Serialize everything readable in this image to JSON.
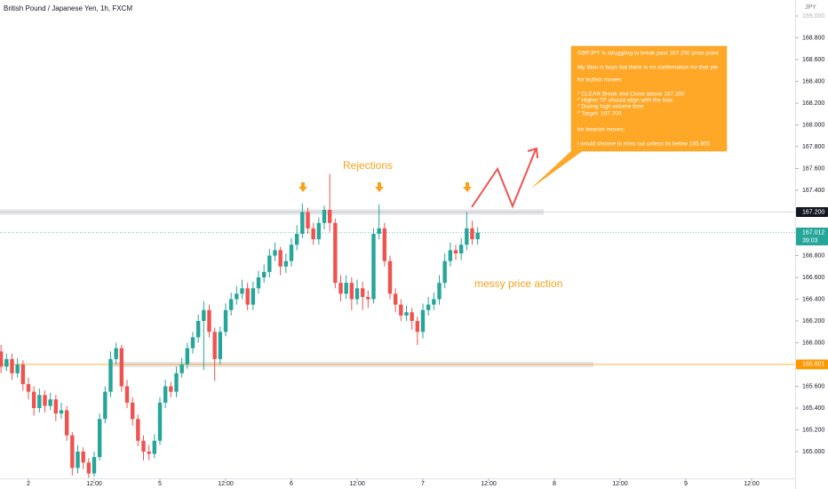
{
  "chart_data": {
    "type": "candlestick",
    "title": "British Pound / Japanese Yen, 1h, FXCM",
    "y_unit": "JPY",
    "up_color": "#26a69a",
    "down_color": "#ef5350",
    "grid": false,
    "xlim": [
      -0.19,
      144.95
    ],
    "ylim": [
      164.755,
      169.147
    ],
    "xticks": [
      {
        "value": 5,
        "label": "2"
      },
      {
        "value": 17,
        "label": "12:00"
      },
      {
        "value": 29,
        "label": "5"
      },
      {
        "value": 41,
        "label": "12:00"
      },
      {
        "value": 53,
        "label": "6"
      },
      {
        "value": 65,
        "label": "12:00"
      },
      {
        "value": 77,
        "label": "7"
      },
      {
        "value": 89,
        "label": "12:00"
      },
      {
        "value": 101,
        "label": "8"
      },
      {
        "value": 113,
        "label": "12:00"
      },
      {
        "value": 125,
        "label": "9"
      },
      {
        "value": 137,
        "label": "12:00"
      }
    ],
    "yticks": [
      {
        "value": 165.0,
        "label": "165.000"
      },
      {
        "value": 165.2,
        "label": "165.200"
      },
      {
        "value": 165.4,
        "label": "165.400"
      },
      {
        "value": 165.6,
        "label": "165.600"
      },
      {
        "value": 166.0,
        "label": "166.000"
      },
      {
        "value": 166.2,
        "label": "166.200"
      },
      {
        "value": 166.4,
        "label": "166.400"
      },
      {
        "value": 166.6,
        "label": "166.600"
      },
      {
        "value": 166.8,
        "label": "166.800"
      },
      {
        "value": 167.4,
        "label": "167.400"
      },
      {
        "value": 167.6,
        "label": "167.600"
      },
      {
        "value": 167.8,
        "label": "167.800"
      },
      {
        "value": 168.0,
        "label": "168.000"
      },
      {
        "value": 168.2,
        "label": "168.200"
      },
      {
        "value": 168.4,
        "label": "168.400"
      },
      {
        "value": 168.6,
        "label": "168.600"
      },
      {
        "value": 168.8,
        "label": "168.800"
      },
      {
        "value": 169.0,
        "label": "169.000"
      }
    ],
    "x": [
      0,
      1,
      2,
      3,
      4,
      5,
      6,
      7,
      8,
      9,
      10,
      11,
      12,
      13,
      14,
      15,
      16,
      17,
      18,
      19,
      20,
      21,
      22,
      23,
      24,
      25,
      26,
      27,
      28,
      29,
      30,
      31,
      32,
      33,
      34,
      35,
      36,
      37,
      38,
      39,
      40,
      41,
      42,
      43,
      44,
      45,
      46,
      47,
      48,
      49,
      50,
      51,
      52,
      53,
      54,
      55,
      56,
      57,
      58,
      59,
      60,
      61,
      62,
      63,
      64,
      65,
      66,
      67,
      68,
      69,
      70,
      71,
      72,
      73,
      74,
      75,
      76,
      77,
      78,
      79,
      80,
      81,
      82,
      83,
      84,
      85,
      86,
      87
    ],
    "open": [
      165.92,
      165.78,
      165.85,
      165.72,
      165.8,
      165.62,
      165.55,
      165.4,
      165.52,
      165.42,
      165.48,
      165.35,
      165.38,
      165.15,
      164.85,
      165.0,
      164.9,
      164.8,
      164.95,
      165.3,
      165.55,
      165.85,
      165.95,
      165.6,
      165.45,
      165.3,
      165.1,
      165.0,
      164.98,
      165.1,
      165.45,
      165.6,
      165.55,
      165.72,
      165.8,
      165.95,
      166.05,
      166.2,
      166.3,
      166.1,
      165.85,
      166.1,
      166.3,
      166.4,
      166.45,
      166.5,
      166.35,
      166.5,
      166.6,
      166.65,
      166.8,
      166.85,
      166.7,
      166.75,
      166.9,
      167.0,
      167.2,
      167.05,
      166.95,
      167.1,
      167.22,
      167.1,
      166.55,
      166.45,
      166.55,
      166.4,
      166.5,
      166.42,
      166.4,
      167.0,
      167.05,
      166.75,
      166.45,
      166.35,
      166.25,
      166.28,
      166.2,
      166.1,
      166.3,
      166.35,
      166.4,
      166.55,
      166.75,
      166.85,
      166.82,
      166.9,
      167.05,
      166.95
    ],
    "high": [
      165.98,
      165.9,
      165.9,
      165.86,
      165.84,
      165.68,
      165.6,
      165.58,
      165.56,
      165.54,
      165.52,
      165.45,
      165.42,
      165.18,
      165.06,
      165.04,
      164.94,
      165.0,
      165.35,
      165.6,
      165.92,
      166.0,
      165.98,
      165.66,
      165.5,
      165.34,
      165.15,
      165.06,
      165.16,
      165.5,
      165.66,
      165.64,
      165.78,
      165.86,
      166.0,
      166.1,
      166.26,
      166.38,
      166.35,
      166.14,
      166.15,
      166.36,
      166.46,
      166.52,
      166.58,
      166.55,
      166.56,
      166.66,
      166.72,
      166.86,
      166.92,
      166.88,
      166.82,
      166.96,
      167.08,
      167.28,
      167.24,
      167.1,
      167.15,
      167.26,
      167.55,
      167.14,
      166.62,
      166.62,
      166.6,
      166.58,
      166.56,
      166.48,
      167.05,
      167.27,
      167.1,
      166.8,
      166.5,
      166.4,
      166.34,
      166.32,
      166.24,
      166.36,
      166.42,
      166.46,
      166.62,
      166.82,
      166.92,
      166.9,
      166.96,
      167.2,
      167.12,
      167.06
    ],
    "low": [
      165.72,
      165.74,
      165.66,
      165.68,
      165.56,
      165.48,
      165.33,
      165.36,
      165.36,
      165.38,
      165.28,
      165.3,
      165.1,
      164.78,
      164.8,
      164.84,
      164.76,
      164.77,
      164.92,
      165.26,
      165.5,
      165.8,
      165.55,
      165.4,
      165.24,
      165.05,
      164.92,
      164.92,
      164.94,
      165.06,
      165.4,
      165.5,
      165.5,
      165.68,
      165.76,
      165.9,
      166.0,
      165.75,
      166.05,
      165.65,
      165.8,
      166.06,
      166.25,
      166.35,
      166.4,
      166.3,
      166.3,
      166.45,
      166.55,
      166.6,
      166.75,
      166.62,
      166.64,
      166.7,
      166.85,
      166.96,
      167.0,
      166.9,
      166.9,
      167.04,
      167.02,
      166.5,
      166.38,
      166.4,
      166.3,
      166.35,
      166.3,
      166.32,
      166.36,
      166.95,
      166.7,
      166.4,
      166.28,
      166.2,
      166.2,
      166.12,
      165.98,
      166.04,
      166.25,
      166.3,
      166.35,
      166.5,
      166.7,
      166.76,
      166.76,
      166.85,
      166.9,
      166.9
    ],
    "close": [
      165.78,
      165.85,
      165.72,
      165.8,
      165.62,
      165.55,
      165.4,
      165.52,
      165.42,
      165.48,
      165.35,
      165.38,
      165.15,
      164.85,
      165.0,
      164.9,
      164.8,
      164.95,
      165.3,
      165.55,
      165.85,
      165.95,
      165.6,
      165.45,
      165.3,
      165.1,
      165.0,
      164.98,
      165.1,
      165.45,
      165.6,
      165.55,
      165.72,
      165.8,
      165.95,
      166.05,
      166.2,
      166.3,
      166.1,
      165.85,
      166.1,
      166.3,
      166.4,
      166.45,
      166.5,
      166.35,
      166.5,
      166.6,
      166.65,
      166.8,
      166.85,
      166.7,
      166.75,
      166.9,
      167.0,
      167.2,
      167.05,
      166.95,
      167.1,
      167.22,
      167.1,
      166.55,
      166.45,
      166.55,
      166.4,
      166.5,
      166.42,
      166.4,
      167.0,
      167.05,
      166.75,
      166.45,
      166.35,
      166.25,
      166.28,
      166.2,
      166.1,
      166.3,
      166.35,
      166.4,
      166.55,
      166.75,
      166.85,
      166.82,
      166.9,
      167.05,
      166.95,
      167.012
    ],
    "price_labels": [
      {
        "value": 167.2,
        "label": "167.200",
        "color": "#131722"
      },
      {
        "value": 167.012,
        "label": "167.012",
        "color": "#26a69a",
        "countdown": "39:03"
      },
      {
        "value": 165.801,
        "label": "165.801",
        "color": "#ff9800"
      }
    ],
    "annotations": {
      "rejections": "Rejections",
      "messy": "messy price action",
      "note": [
        "GBPJPY is struggling to break past 167.200 price point",
        "My Bias is buys but there is no confirmation for that yet",
        "for bullish moves:",
        "* CLEAR Break and Close above 167.200",
        "* Higher TF should align with the bias",
        "* During high volume time",
        "* Target: 167.700",
        "for bearish moves:",
        "i would choose to miss out unless its below 165.800"
      ]
    }
  }
}
